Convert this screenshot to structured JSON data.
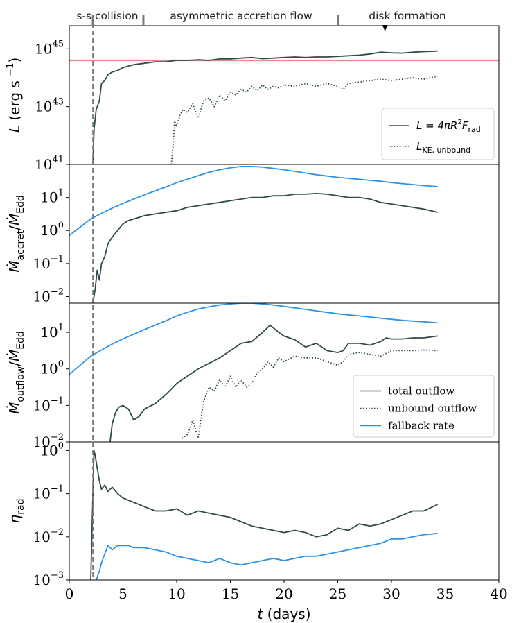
{
  "phase_labels": [
    {
      "text": "s-s collision",
      "x_day": 2.2
    },
    {
      "text": "asymmetric accretion flow",
      "x_day": 6.9
    },
    {
      "text": "disk formation",
      "x_day": 25.0
    }
  ],
  "phase_boundaries_days": [
    2.2,
    6.9,
    25.0
  ],
  "disk_marker_day": 29.4,
  "collision_line_day": 2.2,
  "x_axis": {
    "label_var": "t",
    "label_unit": "(days)",
    "ticks": [
      0,
      5,
      10,
      15,
      20,
      25,
      30,
      35,
      40
    ],
    "range": [
      0,
      40
    ]
  },
  "colors": {
    "dark": "#2f4a4a",
    "blue": "#2a93e8",
    "red": "#e88a8a",
    "dash": "#777777"
  },
  "chart_data": [
    {
      "type": "line",
      "panel": "luminosity",
      "ylabel_var": "L",
      "ylabel_unit": "(erg s",
      "ylabel_exp": "−1",
      "yscale": "log",
      "ylim_log": [
        41,
        45.8
      ],
      "yticks": [
        {
          "base": "10",
          "exp": "41",
          "log": 41
        },
        {
          "base": "10",
          "exp": "43",
          "log": 43
        },
        {
          "base": "10",
          "exp": "45",
          "log": 45
        }
      ],
      "hline_log": 44.6,
      "legend": {
        "position": "lower-right",
        "entries": [
          {
            "label": "L = 4πR",
            "sup": "2",
            "tail": "F",
            "sub": "rad",
            "style": "solid"
          },
          {
            "label": "L",
            "sub": "KE, unbound",
            "style": "dotted"
          }
        ]
      },
      "series": [
        {
          "style": "solid",
          "color_key": "dark",
          "x": [
            2.2,
            2.3,
            2.5,
            2.8,
            3.0,
            3.3,
            3.6,
            4.0,
            4.5,
            5.0,
            5.5,
            6.0,
            7.0,
            8.0,
            9.0,
            10.0,
            11.0,
            12.0,
            13.0,
            14.0,
            15.0,
            16.0,
            17.0,
            18.0,
            19.0,
            20.0,
            21.0,
            22.0,
            23.0,
            24.0,
            25.0,
            26.0,
            27.0,
            28.0,
            29.0,
            30.0,
            31.0,
            32.0,
            33.0,
            34.3
          ],
          "y": [
            41.0,
            42.2,
            42.9,
            43.2,
            43.8,
            43.9,
            44.1,
            44.2,
            44.25,
            44.35,
            44.4,
            44.45,
            44.5,
            44.55,
            44.55,
            44.6,
            44.6,
            44.62,
            44.6,
            44.65,
            44.65,
            44.68,
            44.7,
            44.66,
            44.68,
            44.7,
            44.72,
            44.7,
            44.72,
            44.72,
            44.74,
            44.76,
            44.78,
            44.82,
            44.88,
            44.86,
            44.85,
            44.88,
            44.9,
            44.92
          ]
        },
        {
          "style": "dotted",
          "color_key": "dark",
          "x": [
            9.5,
            9.7,
            9.8,
            10.0,
            10.3,
            10.6,
            11.0,
            11.5,
            12.0,
            12.5,
            13.0,
            13.5,
            14.0,
            14.5,
            15.0,
            15.5,
            16.0,
            16.5,
            17.0,
            17.5,
            18.0,
            18.5,
            19.0,
            19.5,
            20.0,
            21.0,
            22.0,
            23.0,
            24.0,
            25.0,
            25.5,
            26.0,
            27.0,
            28.0,
            29.0,
            30.0,
            31.0,
            32.0,
            33.0,
            34.3
          ],
          "y": [
            41.0,
            41.8,
            42.5,
            42.3,
            42.7,
            42.9,
            42.8,
            43.1,
            42.6,
            43.2,
            43.3,
            43.0,
            43.4,
            43.2,
            43.5,
            43.4,
            43.6,
            43.5,
            43.7,
            43.55,
            43.75,
            43.6,
            43.7,
            43.65,
            43.75,
            43.7,
            43.8,
            43.7,
            43.8,
            43.7,
            43.6,
            43.8,
            43.85,
            43.9,
            43.95,
            43.9,
            43.95,
            44.0,
            43.95,
            44.05
          ]
        }
      ]
    },
    {
      "type": "line",
      "panel": "accretion",
      "ylabel": "Ṁaccret/ṀEdd",
      "ylabel_num": "Ṁ",
      "ylabel_num_sub": "accret",
      "ylabel_den": "Ṁ",
      "ylabel_den_sub": "Edd",
      "yscale": "log",
      "ylim_log": [
        -2.2,
        2.0
      ],
      "yticks": [
        {
          "base": "10",
          "exp": "−2",
          "log": -2
        },
        {
          "base": "10",
          "exp": "−1",
          "log": -1
        },
        {
          "base": "10",
          "exp": "0",
          "log": 0
        },
        {
          "base": "10",
          "exp": "1",
          "log": 1
        }
      ],
      "series": [
        {
          "style": "solid",
          "color_key": "blue",
          "x": [
            0,
            1,
            2,
            3,
            4,
            5,
            6,
            7,
            8,
            9,
            10,
            11,
            12,
            13,
            14,
            15,
            16,
            17,
            18,
            19,
            20,
            21,
            22,
            23,
            24,
            25,
            26,
            27,
            28,
            29,
            30,
            31,
            32,
            33,
            34.3
          ],
          "y": [
            -0.15,
            0.1,
            0.35,
            0.52,
            0.68,
            0.82,
            0.95,
            1.08,
            1.2,
            1.32,
            1.45,
            1.55,
            1.66,
            1.76,
            1.84,
            1.9,
            1.94,
            1.94,
            1.92,
            1.88,
            1.84,
            1.79,
            1.74,
            1.69,
            1.65,
            1.61,
            1.58,
            1.55,
            1.52,
            1.49,
            1.45,
            1.42,
            1.39,
            1.36,
            1.33
          ]
        },
        {
          "style": "solid",
          "color_key": "dark",
          "x": [
            2.2,
            2.4,
            2.6,
            2.8,
            3.0,
            3.3,
            3.6,
            4.0,
            4.5,
            5.0,
            5.5,
            6.0,
            7.0,
            8.0,
            9.0,
            10.0,
            11.0,
            12.0,
            13.0,
            14.0,
            15.0,
            16.0,
            17.0,
            18.0,
            19.0,
            20.0,
            21.0,
            22.0,
            23.0,
            24.0,
            25.0,
            26.0,
            27.0,
            28.0,
            29.0,
            30.0,
            31.0,
            32.0,
            33.0,
            34.3
          ],
          "y": [
            -2.2,
            -1.8,
            -1.2,
            -1.5,
            -1.0,
            -0.8,
            -0.4,
            -0.2,
            0.0,
            0.2,
            0.3,
            0.35,
            0.45,
            0.5,
            0.55,
            0.6,
            0.7,
            0.75,
            0.8,
            0.85,
            0.9,
            0.95,
            1.0,
            1.0,
            1.05,
            1.05,
            1.1,
            1.1,
            1.12,
            1.1,
            1.05,
            1.0,
            1.0,
            0.95,
            0.85,
            0.8,
            0.75,
            0.7,
            0.65,
            0.55
          ]
        }
      ]
    },
    {
      "type": "line",
      "panel": "outflow",
      "ylabel": "Ṁoutflow/ṀEdd",
      "ylabel_num": "Ṁ",
      "ylabel_num_sub": "outflow",
      "ylabel_den": "Ṁ",
      "ylabel_den_sub": "Edd",
      "yscale": "log",
      "ylim_log": [
        -2.0,
        1.8
      ],
      "yticks": [
        {
          "base": "10",
          "exp": "−2",
          "log": -2
        },
        {
          "base": "10",
          "exp": "−1",
          "log": -1
        },
        {
          "base": "10",
          "exp": "0",
          "log": 0
        },
        {
          "base": "10",
          "exp": "1",
          "log": 1
        }
      ],
      "legend": {
        "position": "lower-right",
        "entries": [
          {
            "label": "total outflow",
            "style": "solid",
            "color_key": "dark"
          },
          {
            "label": "unbound outflow",
            "style": "dotted",
            "color_key": "dark"
          },
          {
            "label": "fallback rate",
            "style": "solid",
            "color_key": "blue"
          }
        ]
      },
      "series": [
        {
          "style": "solid",
          "color_key": "blue",
          "x": [
            0,
            1,
            2,
            3,
            4,
            5,
            6,
            7,
            8,
            9,
            10,
            11,
            12,
            13,
            14,
            15,
            16,
            17,
            18,
            19,
            20,
            21,
            22,
            23,
            24,
            25,
            26,
            27,
            28,
            29,
            30,
            31,
            32,
            33,
            34.3
          ],
          "y": [
            -0.15,
            0.1,
            0.35,
            0.52,
            0.68,
            0.82,
            0.95,
            1.08,
            1.2,
            1.32,
            1.45,
            1.55,
            1.64,
            1.7,
            1.75,
            1.78,
            1.8,
            1.8,
            1.78,
            1.75,
            1.71,
            1.67,
            1.63,
            1.59,
            1.55,
            1.51,
            1.48,
            1.45,
            1.42,
            1.39,
            1.36,
            1.33,
            1.31,
            1.29,
            1.26
          ]
        },
        {
          "style": "solid",
          "color_key": "dark",
          "x": [
            3.8,
            4.0,
            4.3,
            4.6,
            5.0,
            5.5,
            6.0,
            6.5,
            7.0,
            8.0,
            9.0,
            10.0,
            11.0,
            12.0,
            13.0,
            14.0,
            15.0,
            16.0,
            17.0,
            18.0,
            18.7,
            19.5,
            20.0,
            21.0,
            22.0,
            23.0,
            24.0,
            25.0,
            25.5,
            26.0,
            27.0,
            28.0,
            29.0,
            29.5,
            30.0,
            31.0,
            32.0,
            33.0,
            34.3
          ],
          "y": [
            -2.0,
            -1.5,
            -1.2,
            -1.05,
            -1.0,
            -1.1,
            -1.4,
            -1.3,
            -1.1,
            -0.95,
            -0.7,
            -0.4,
            -0.2,
            0.0,
            0.15,
            0.3,
            0.5,
            0.7,
            0.75,
            1.0,
            1.2,
            1.0,
            0.9,
            0.8,
            0.6,
            0.7,
            0.5,
            0.45,
            0.5,
            0.7,
            0.7,
            0.65,
            0.75,
            0.85,
            0.82,
            0.82,
            0.85,
            0.85,
            0.9
          ]
        },
        {
          "style": "dotted",
          "color_key": "dark",
          "x": [
            10.5,
            11.0,
            11.5,
            12.0,
            12.5,
            13.0,
            13.5,
            14.0,
            14.5,
            15.0,
            15.5,
            16.0,
            16.5,
            17.0,
            17.5,
            18.0,
            18.5,
            19.0,
            19.5,
            20.0,
            21.0,
            22.0,
            23.0,
            24.0,
            25.0,
            25.5,
            26.0,
            27.0,
            28.0,
            29.0,
            30.0,
            31.0,
            32.0,
            33.0,
            34.3
          ],
          "y": [
            -1.9,
            -1.8,
            -1.4,
            -1.9,
            -0.9,
            -0.5,
            -0.6,
            -0.3,
            -0.5,
            -0.2,
            -0.5,
            -0.3,
            -0.5,
            -0.4,
            -0.1,
            0.0,
            0.2,
            0.05,
            0.3,
            0.2,
            0.35,
            0.3,
            0.3,
            0.2,
            0.1,
            0.2,
            0.4,
            0.45,
            0.4,
            0.35,
            0.5,
            0.5,
            0.5,
            0.52,
            0.5
          ]
        }
      ]
    },
    {
      "type": "line",
      "panel": "efficiency",
      "ylabel_var": "η",
      "ylabel_sub": "rad",
      "yscale": "log",
      "ylim_log": [
        -3.0,
        0.2
      ],
      "yticks": [
        {
          "base": "10",
          "exp": "−3",
          "log": -3
        },
        {
          "base": "10",
          "exp": "−2",
          "log": -2
        },
        {
          "base": "10",
          "exp": "−1",
          "log": -1
        },
        {
          "base": "10",
          "exp": "0",
          "log": 0
        }
      ],
      "series": [
        {
          "style": "solid",
          "color_key": "dark",
          "x": [
            2.0,
            2.2,
            2.3,
            2.4,
            2.6,
            2.8,
            3.0,
            3.3,
            3.6,
            4.0,
            4.5,
            5.0,
            5.5,
            6.0,
            7.0,
            8.0,
            9.0,
            10.0,
            11.0,
            12.0,
            13.0,
            14.0,
            15.0,
            16.0,
            17.0,
            18.0,
            19.0,
            20.0,
            21.0,
            22.0,
            23.0,
            24.0,
            25.0,
            26.0,
            27.0,
            28.0,
            29.0,
            30.0,
            31.0,
            32.0,
            33.0,
            34.3
          ],
          "y": [
            -3.0,
            -1.0,
            0.0,
            -0.1,
            -0.4,
            -0.7,
            -0.9,
            -0.8,
            -0.95,
            -0.85,
            -1.0,
            -1.1,
            -1.15,
            -1.2,
            -1.3,
            -1.4,
            -1.4,
            -1.35,
            -1.5,
            -1.4,
            -1.45,
            -1.5,
            -1.55,
            -1.65,
            -1.75,
            -1.8,
            -1.85,
            -1.9,
            -1.85,
            -1.9,
            -2.0,
            -1.95,
            -1.8,
            -1.85,
            -1.7,
            -1.75,
            -1.7,
            -1.6,
            -1.5,
            -1.4,
            -1.4,
            -1.25
          ]
        },
        {
          "style": "solid",
          "color_key": "blue",
          "x": [
            2.5,
            2.8,
            3.0,
            3.3,
            3.6,
            4.0,
            4.5,
            5.0,
            5.5,
            6.0,
            7.0,
            8.0,
            9.0,
            10.0,
            11.0,
            12.0,
            13.0,
            14.0,
            15.0,
            16.0,
            17.0,
            18.0,
            19.0,
            20.0,
            21.0,
            22.0,
            23.0,
            24.0,
            25.0,
            26.0,
            27.0,
            28.0,
            29.0,
            30.0,
            31.0,
            32.0,
            33.0,
            34.3
          ],
          "y": [
            -3.0,
            -2.8,
            -2.6,
            -2.4,
            -2.2,
            -2.3,
            -2.2,
            -2.2,
            -2.2,
            -2.25,
            -2.25,
            -2.3,
            -2.35,
            -2.45,
            -2.5,
            -2.55,
            -2.6,
            -2.5,
            -2.6,
            -2.65,
            -2.6,
            -2.55,
            -2.5,
            -2.55,
            -2.5,
            -2.45,
            -2.45,
            -2.4,
            -2.35,
            -2.3,
            -2.25,
            -2.2,
            -2.15,
            -2.05,
            -2.05,
            -2.0,
            -1.95,
            -1.92
          ]
        }
      ]
    }
  ]
}
